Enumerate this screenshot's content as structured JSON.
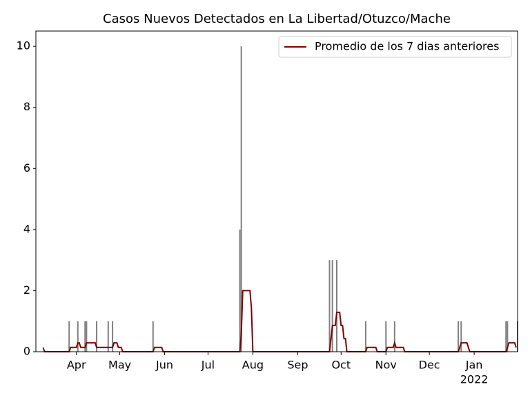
{
  "chart_data": {
    "type": "bar",
    "title": "Casos Nuevos Detectados en La Libertad/Otuzco/Mache",
    "x": [
      23,
      29,
      34,
      35,
      42,
      50,
      53,
      81,
      141,
      142,
      203,
      205,
      208,
      228,
      242,
      248,
      292,
      294,
      325,
      326,
      333
    ],
    "values": [
      1,
      1,
      1,
      1,
      1,
      1,
      1,
      1,
      4,
      10,
      3,
      3,
      3,
      1,
      1,
      1,
      1,
      1,
      1,
      1,
      1
    ],
    "color": "#808080",
    "line": {
      "name": "Promedio de los 7 dias anteriores",
      "color": "#800000",
      "x": [
        5,
        6,
        23,
        24,
        28,
        29,
        30,
        31,
        34,
        35,
        41,
        42,
        53,
        54,
        56,
        57,
        59,
        60,
        81,
        82,
        87,
        88,
        141,
        142,
        143,
        148,
        149,
        150,
        203,
        204,
        205,
        207,
        208,
        210,
        211,
        212,
        213,
        214,
        215,
        228,
        229,
        235,
        236,
        242,
        243,
        247,
        248,
        249,
        254,
        255,
        292,
        293,
        294,
        298,
        299,
        300,
        325,
        326,
        327,
        331,
        332
      ],
      "values": [
        0.14,
        0,
        0,
        0.14,
        0.14,
        0.29,
        0.29,
        0.14,
        0.14,
        0.29,
        0.29,
        0.14,
        0.14,
        0.29,
        0.29,
        0.14,
        0.14,
        0,
        0,
        0.14,
        0.14,
        0,
        0,
        0.57,
        2,
        2,
        1.43,
        0,
        0,
        0.43,
        0.86,
        0.86,
        1.29,
        1.29,
        0.86,
        0.86,
        0.43,
        0.43,
        0,
        0,
        0.14,
        0.14,
        0,
        0,
        0.14,
        0.14,
        0.29,
        0.14,
        0.14,
        0,
        0,
        0.14,
        0.29,
        0.29,
        0.14,
        0,
        0,
        0.14,
        0.29,
        0.29,
        0.14
      ]
    },
    "xlim": [
      0,
      333
    ],
    "xticks": [
      {
        "value": 28,
        "label": "Apr"
      },
      {
        "value": 58,
        "label": "May"
      },
      {
        "value": 89,
        "label": "Jun"
      },
      {
        "value": 119,
        "label": "Jul"
      },
      {
        "value": 150,
        "label": "Aug"
      },
      {
        "value": 181,
        "label": "Sep"
      },
      {
        "value": 211,
        "label": "Oct"
      },
      {
        "value": 242,
        "label": "Nov"
      },
      {
        "value": 272,
        "label": "Dec"
      },
      {
        "value": 303,
        "label": "Jan"
      }
    ],
    "x_year_label": "2022",
    "ylim": [
      0,
      10.5
    ],
    "yticks": [
      0,
      2,
      4,
      6,
      8,
      10
    ],
    "legend": "upper right"
  }
}
